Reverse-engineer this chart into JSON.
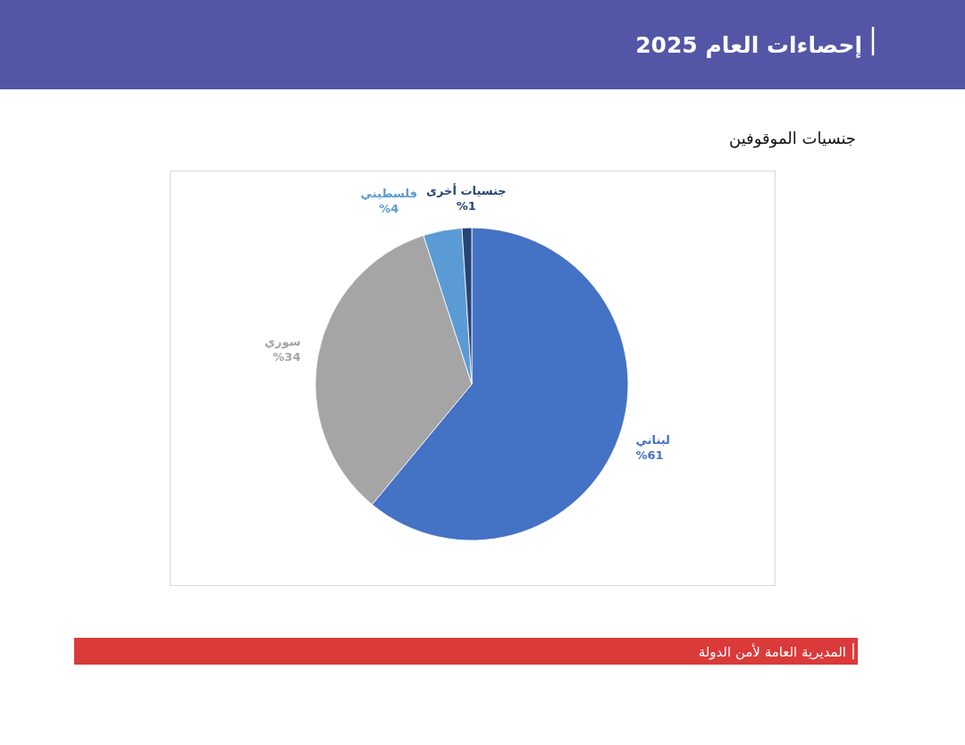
{
  "chart_data": {
    "type": "pie",
    "title": "إحصاءات العام 2025",
    "subtitle": "جنسيات الموقوفين",
    "categories": [
      "لبناني",
      "سوري",
      "فلسطيني",
      "جنسيات أخرى"
    ],
    "values": [
      61,
      34,
      4,
      1
    ],
    "colors": [
      "#4472c4",
      "#a5a5a5",
      "#5b9bd5",
      "#264478"
    ],
    "value_labels": [
      "%61",
      "%34",
      "%4",
      "%1"
    ],
    "annotations": [
      "المديرية العامة لأمن الدولة"
    ]
  }
}
